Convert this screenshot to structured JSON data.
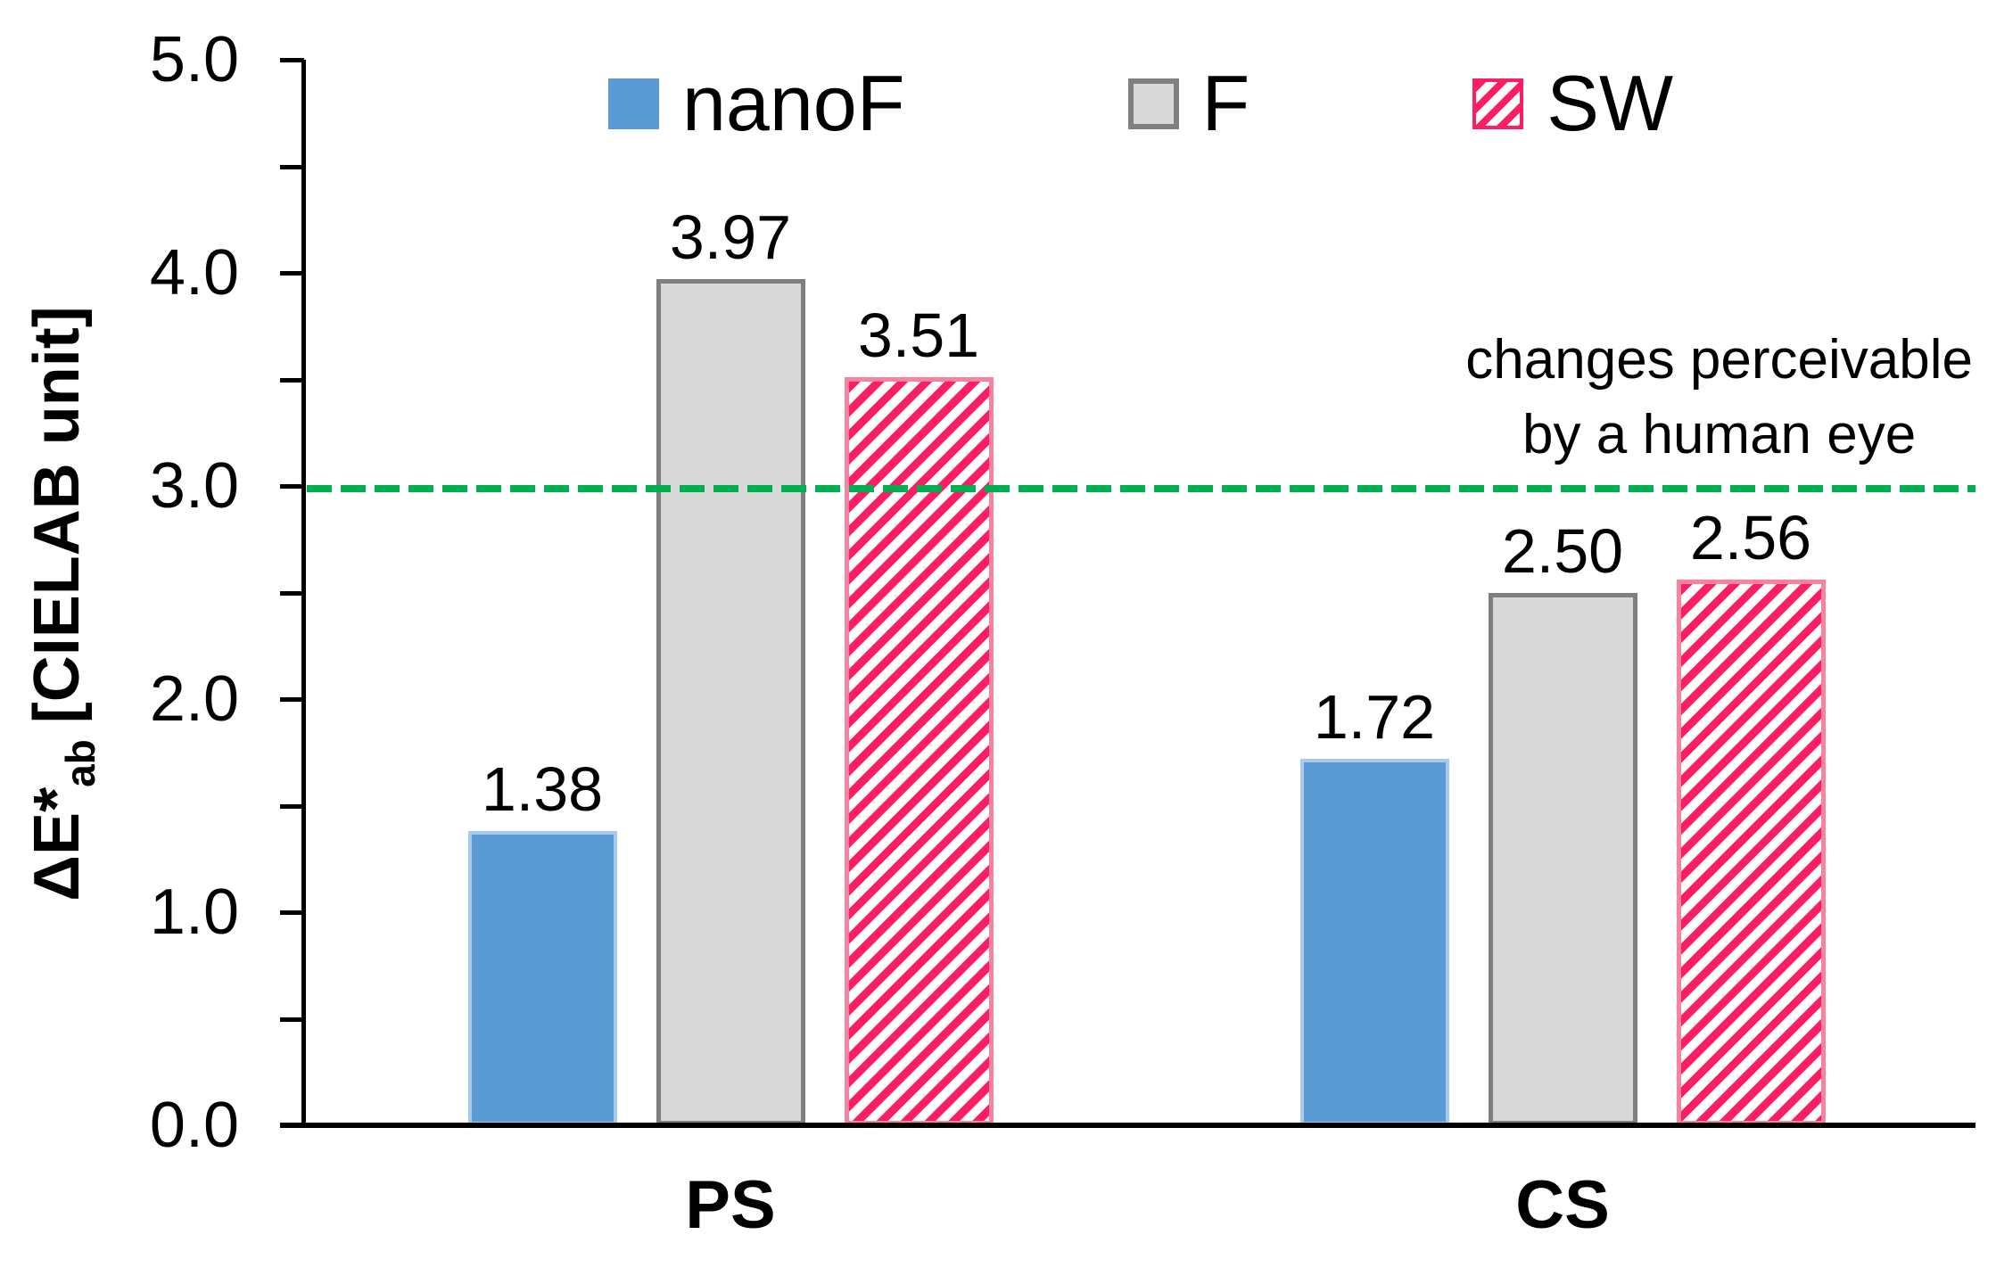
{
  "chart_data": {
    "type": "bar",
    "title": "",
    "categories": [
      "PS",
      "CS"
    ],
    "series": [
      {
        "name": "nanoF",
        "values": [
          1.38,
          1.72
        ],
        "value_labels": [
          "1.38",
          "1.72"
        ],
        "fill": "#5B9BD5",
        "pattern": "solid"
      },
      {
        "name": "F",
        "values": [
          3.97,
          2.5
        ],
        "value_labels": [
          "3.97",
          "2.50"
        ],
        "fill": "#D9D9D9",
        "border": "#7F7F7F",
        "pattern": "solid"
      },
      {
        "name": "SW",
        "values": [
          3.51,
          2.56
        ],
        "value_labels": [
          "3.51",
          "2.56"
        ],
        "fill": "#FD1D62",
        "pattern": "diagonal-hatch"
      }
    ],
    "ylabel_main": "ΔE*",
    "ylabel_sub": "ab",
    "ylabel_unit": "[CIELAB unit]",
    "ylim": [
      0.0,
      5.0
    ],
    "ytick_major_step": 1.0,
    "ytick_minor_step": 0.5,
    "ytick_labels": [
      "0.0",
      "1.0",
      "2.0",
      "3.0",
      "4.0",
      "5.0"
    ],
    "grid": false,
    "legend_position": "top",
    "reference_line": {
      "value": 3.0,
      "color": "#00B050",
      "style": "dashed",
      "label_line1": "changes perceivable",
      "label_line2": "by a human eye"
    }
  }
}
